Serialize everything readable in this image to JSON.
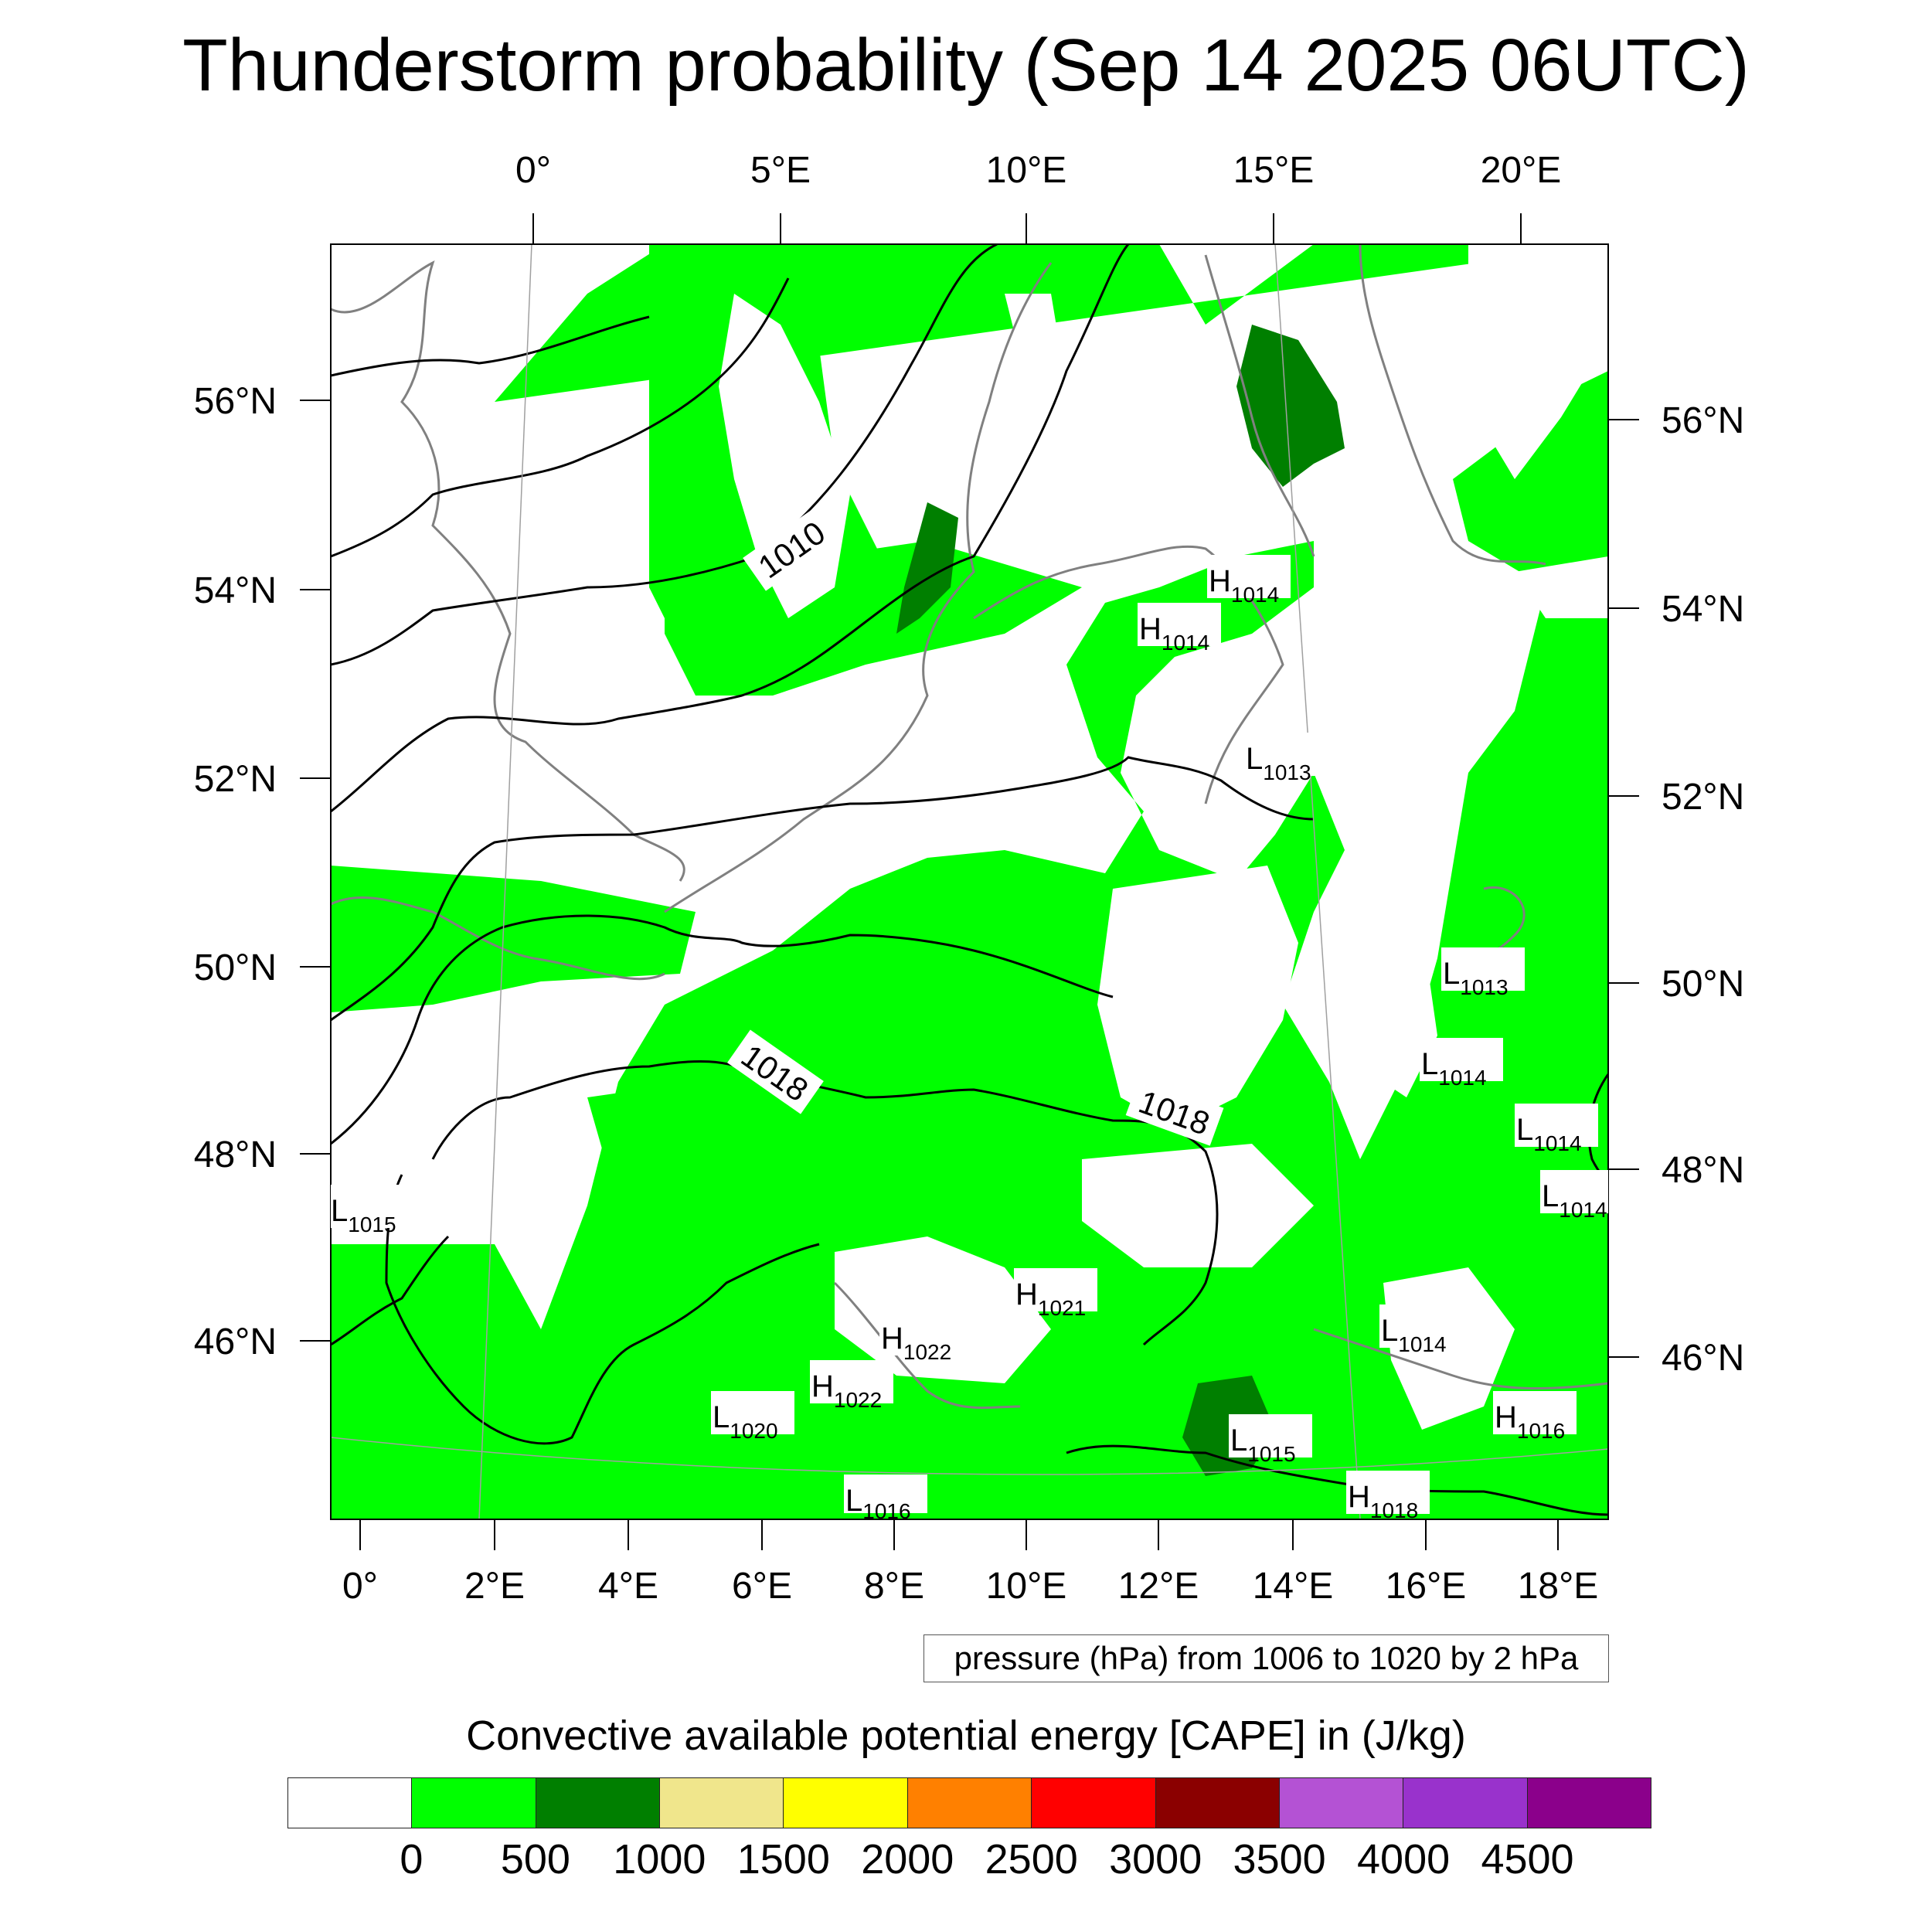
{
  "title": "Thunderstorm probability (Sep 14 2025 06UTC)",
  "map": {
    "top_lon_labels": [
      "0°",
      "5°E",
      "10°E",
      "15°E",
      "20°E"
    ],
    "bottom_lon_labels": [
      "0°",
      "2°E",
      "4°E",
      "6°E",
      "8°E",
      "10°E",
      "12°E",
      "14°E",
      "16°E",
      "18°E"
    ],
    "left_lat_labels": [
      "56°N",
      "54°N",
      "52°N",
      "50°N",
      "48°N",
      "46°N"
    ],
    "right_lat_labels": [
      "56°N",
      "54°N",
      "52°N",
      "50°N",
      "48°N",
      "46°N"
    ],
    "isobar_labels": [
      "1010",
      "1018",
      "1018"
    ],
    "pressure_centers": [
      {
        "type": "H",
        "value": "1014"
      },
      {
        "type": "H",
        "value": "1014"
      },
      {
        "type": "L",
        "value": "1013"
      },
      {
        "type": "L",
        "value": "1013"
      },
      {
        "type": "L",
        "value": "1014"
      },
      {
        "type": "L",
        "value": "1014"
      },
      {
        "type": "L",
        "value": "1014"
      },
      {
        "type": "L",
        "value": "1015"
      },
      {
        "type": "H",
        "value": "1021"
      },
      {
        "type": "H",
        "value": "1022"
      },
      {
        "type": "H",
        "value": "1022"
      },
      {
        "type": "L",
        "value": "1020"
      },
      {
        "type": "L",
        "value": "1014"
      },
      {
        "type": "H",
        "value": "1016"
      },
      {
        "type": "L",
        "value": "1015"
      },
      {
        "type": "H",
        "value": "1018"
      },
      {
        "type": "L",
        "value": "1016"
      }
    ],
    "colors": {
      "cape_low": "#00ff00",
      "cape_mid": "#007f00",
      "coast": "#808080",
      "isobar": "#000000"
    }
  },
  "pressure_note": "pressure (hPa) from 1006 to 1020 by 2 hPa",
  "legend": {
    "title": "Convective available potential energy [CAPE] in (J/kg)",
    "colors": [
      "#ffffff",
      "#00ff00",
      "#007f00",
      "#f0e68c",
      "#ffff00",
      "#ff8000",
      "#ff0000",
      "#8b0000",
      "#b452d4",
      "#9932cc",
      "#8b008b"
    ],
    "ticks": [
      "0",
      "500",
      "1000",
      "1500",
      "2000",
      "2500",
      "3000",
      "3500",
      "4000",
      "4500"
    ]
  }
}
